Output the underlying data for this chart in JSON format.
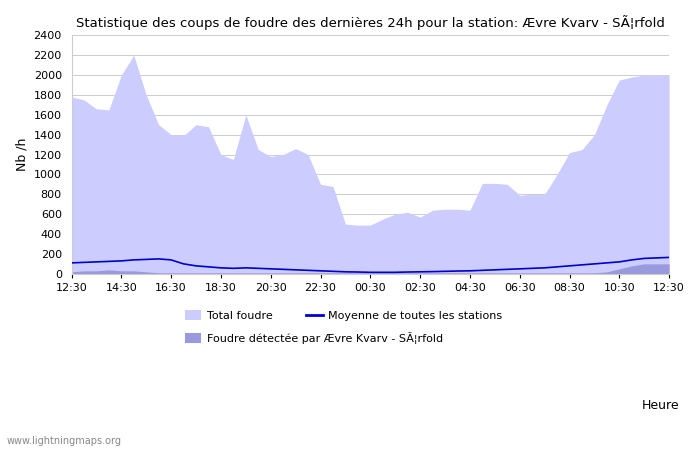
{
  "title": "Statistique des coups de foudre des dernières 24h pour la station: Ævre Kvarv - SÃ¦rfold",
  "ylabel": "Nb /h",
  "xlabel_right": "Heure",
  "watermark": "www.lightningmaps.org",
  "ylim": [
    0,
    2400
  ],
  "yticks": [
    0,
    200,
    400,
    600,
    800,
    1000,
    1200,
    1400,
    1600,
    1800,
    2000,
    2200,
    2400
  ],
  "xtick_labels": [
    "12:30",
    "14:30",
    "16:30",
    "18:30",
    "20:30",
    "22:30",
    "00:30",
    "02:30",
    "04:30",
    "06:30",
    "08:30",
    "10:30",
    "12:30"
  ],
  "color_total_fill": "#ccccff",
  "color_local_fill": "#9999dd",
  "color_moyenne_line": "#0000cc",
  "legend_total": "Total foudre",
  "legend_moyenne": "Moyenne de toutes les stations",
  "legend_local": "Foudre détectée par Ævre Kvarv - SÃ¦rfold",
  "background_color": "#ffffff",
  "grid_color": "#cccccc",
  "total_foudre": [
    1780,
    1750,
    1660,
    1650,
    2000,
    2200,
    1800,
    1500,
    1400,
    1390,
    1500,
    1480,
    1200,
    1150,
    1600,
    1250,
    1180,
    1200,
    1260,
    1200,
    900,
    880,
    500,
    490,
    490,
    550,
    600,
    620,
    570,
    640,
    650,
    650,
    640,
    910,
    910,
    900,
    790,
    800,
    800,
    1000,
    1220,
    1250,
    1400,
    1700,
    1950,
    1980,
    2000,
    2000,
    2000
  ],
  "local_foudre": [
    20,
    30,
    30,
    40,
    30,
    30,
    20,
    10,
    10,
    10,
    10,
    10,
    10,
    10,
    10,
    10,
    10,
    10,
    10,
    10,
    10,
    10,
    10,
    10,
    10,
    10,
    10,
    10,
    10,
    10,
    10,
    10,
    10,
    10,
    10,
    10,
    10,
    10,
    10,
    10,
    10,
    10,
    10,
    20,
    50,
    80,
    100,
    100,
    100
  ],
  "moyenne_line": [
    110,
    115,
    120,
    125,
    130,
    140,
    145,
    150,
    140,
    100,
    80,
    70,
    60,
    55,
    60,
    55,
    50,
    45,
    40,
    35,
    30,
    25,
    20,
    18,
    15,
    15,
    15,
    18,
    20,
    22,
    25,
    28,
    30,
    35,
    40,
    45,
    50,
    55,
    60,
    70,
    80,
    90,
    100,
    110,
    120,
    140,
    155,
    160,
    165
  ],
  "figsize": [
    7.0,
    4.5
  ],
  "dpi": 100
}
